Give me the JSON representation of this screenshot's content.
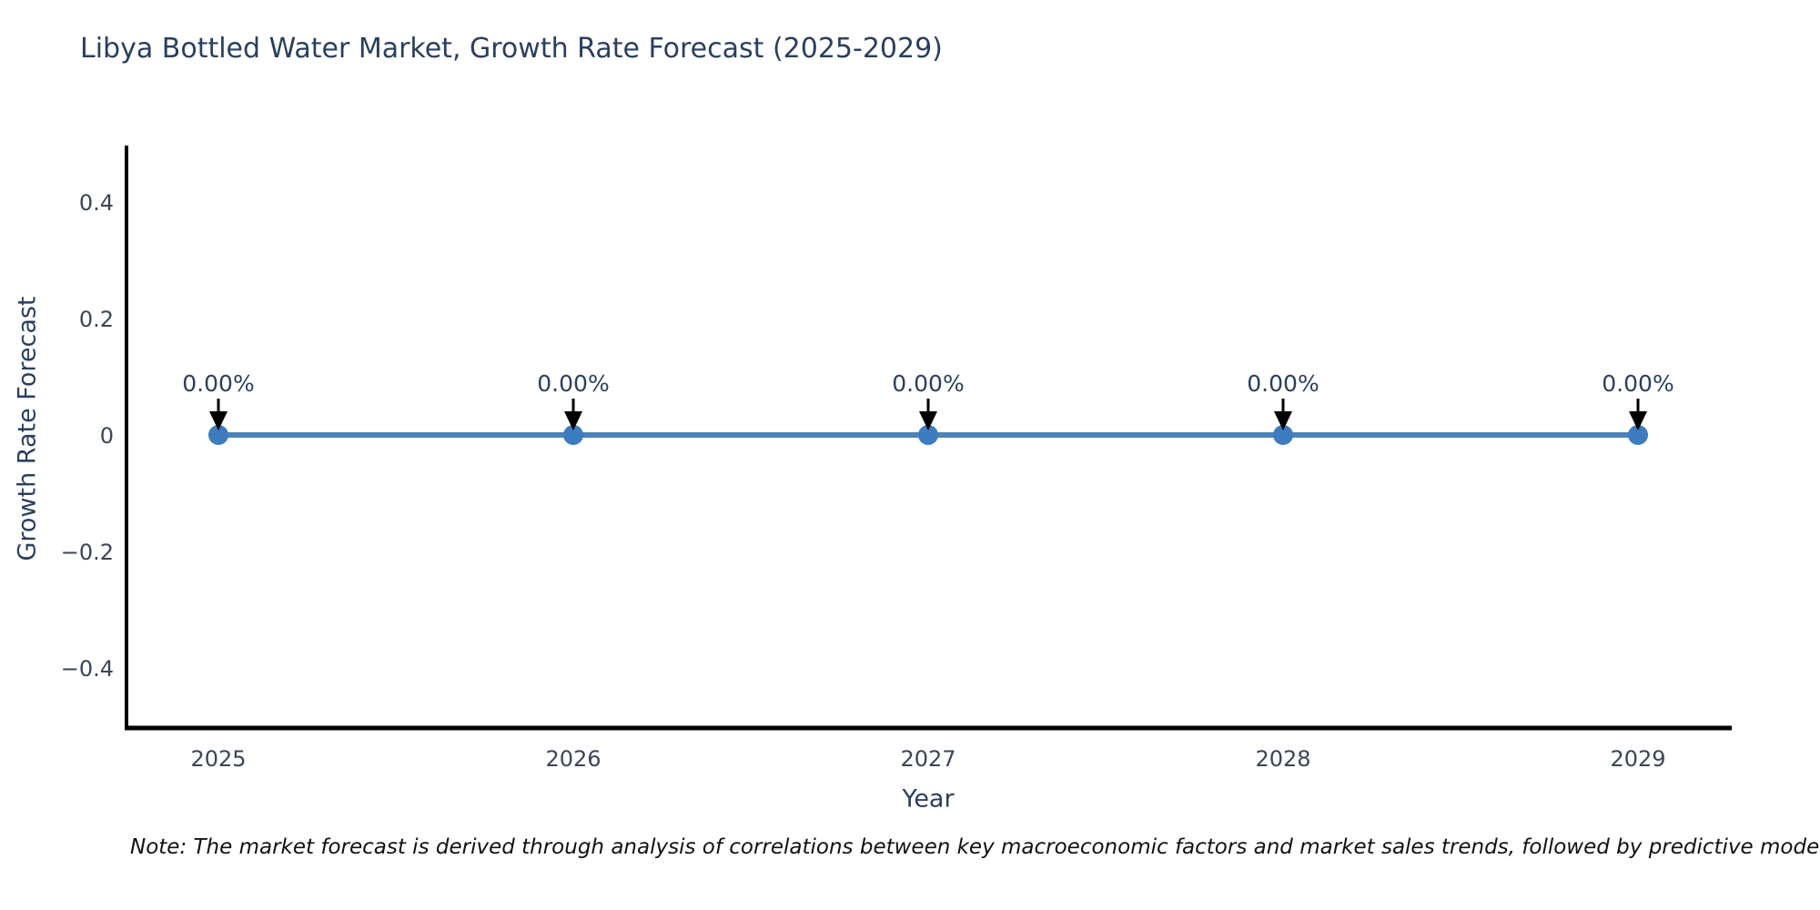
{
  "title": "Libya Bottled Water Market, Growth Rate Forecast (2025-2029)",
  "note": "Note: The market forecast is derived through analysis of correlations between key macroeconomic factors and market sales trends, followed by predictive modeling to project future sa",
  "chart_data": {
    "type": "line",
    "title": "Libya Bottled Water Market, Growth Rate Forecast (2025-2029)",
    "xlabel": "Year",
    "ylabel": "Growth Rate Forecast",
    "categories": [
      "2025",
      "2026",
      "2027",
      "2028",
      "2029"
    ],
    "values": [
      0,
      0,
      0,
      0,
      0
    ],
    "point_labels": [
      "0.00%",
      "0.00%",
      "0.00%",
      "0.00%",
      "0.00%"
    ],
    "ytick_labels": [
      "0.4",
      "0.2",
      "0",
      "−0.2",
      "−0.4"
    ],
    "ytick_values": [
      0.4,
      0.2,
      0,
      -0.2,
      -0.4
    ],
    "ylim": [
      -0.5,
      0.5
    ],
    "grid": false,
    "legend": "none",
    "colors": {
      "line": "#4d82b4",
      "marker": "#3d7cbe",
      "axis": "#000000",
      "tick_text": "#3a4556",
      "annotation_text": "#2a3f5f",
      "annotation_arrow": "#000000"
    }
  }
}
